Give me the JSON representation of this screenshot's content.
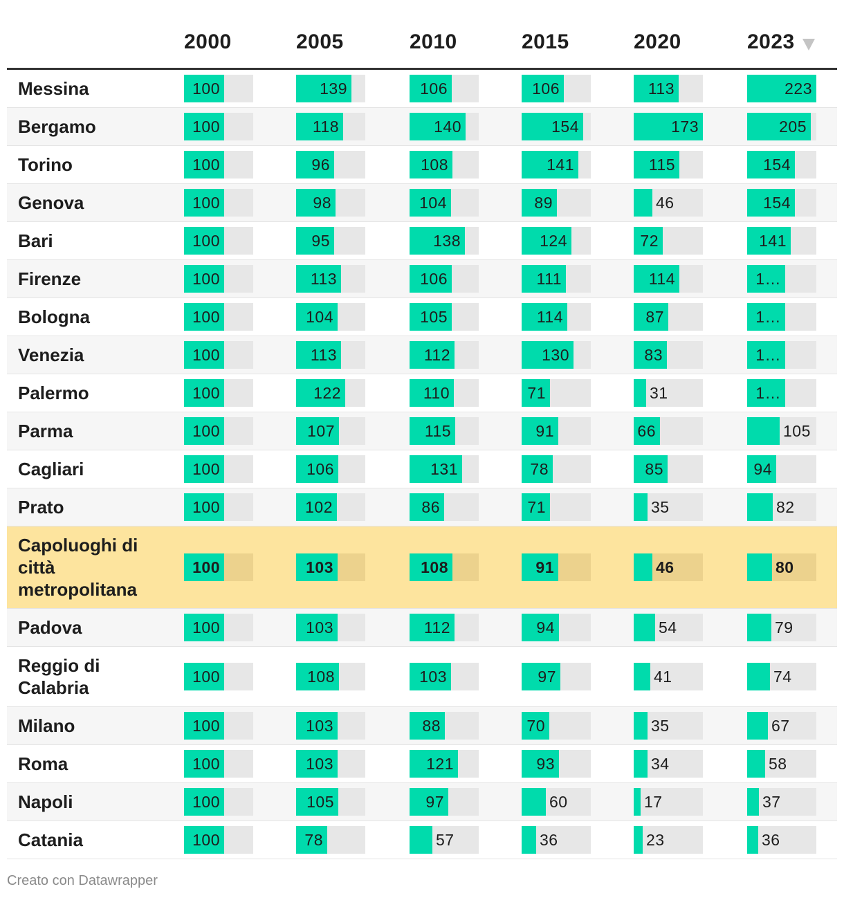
{
  "chart_data": {
    "type": "table",
    "columns": [
      "2000",
      "2005",
      "2010",
      "2015",
      "2020",
      "2023"
    ],
    "sort_column": "2023",
    "max_value": 223,
    "rows": [
      {
        "city": "Messina",
        "values": [
          100,
          139,
          106,
          106,
          113,
          223
        ],
        "labels": [
          "100",
          "139",
          "106",
          "106",
          "113",
          "223"
        ],
        "highlight": false
      },
      {
        "city": "Bergamo",
        "values": [
          100,
          118,
          140,
          154,
          173,
          205
        ],
        "labels": [
          "100",
          "118",
          "140",
          "154",
          "173",
          "205"
        ],
        "highlight": false
      },
      {
        "city": "Torino",
        "values": [
          100,
          96,
          108,
          141,
          115,
          154
        ],
        "labels": [
          "100",
          "96",
          "108",
          "141",
          "115",
          "154"
        ],
        "highlight": false
      },
      {
        "city": "Genova",
        "values": [
          100,
          98,
          104,
          89,
          46,
          154
        ],
        "labels": [
          "100",
          "98",
          "104",
          "89",
          "46",
          "154"
        ],
        "highlight": false
      },
      {
        "city": "Bari",
        "values": [
          100,
          95,
          138,
          124,
          72,
          141
        ],
        "labels": [
          "100",
          "95",
          "138",
          "124",
          "72",
          "141"
        ],
        "highlight": false
      },
      {
        "city": "Firenze",
        "values": [
          100,
          113,
          106,
          111,
          114,
          123
        ],
        "labels": [
          "100",
          "113",
          "106",
          "111",
          "114",
          "1…"
        ],
        "highlight": false
      },
      {
        "city": "Bologna",
        "values": [
          100,
          104,
          105,
          114,
          87,
          123
        ],
        "labels": [
          "100",
          "104",
          "105",
          "114",
          "87",
          "1…"
        ],
        "highlight": false
      },
      {
        "city": "Venezia",
        "values": [
          100,
          113,
          112,
          130,
          83,
          123
        ],
        "labels": [
          "100",
          "113",
          "112",
          "130",
          "83",
          "1…"
        ],
        "highlight": false
      },
      {
        "city": "Palermo",
        "values": [
          100,
          122,
          110,
          71,
          31,
          123
        ],
        "labels": [
          "100",
          "122",
          "110",
          "71",
          "31",
          "1…"
        ],
        "highlight": false
      },
      {
        "city": "Parma",
        "values": [
          100,
          107,
          115,
          91,
          66,
          105
        ],
        "labels": [
          "100",
          "107",
          "115",
          "91",
          "66",
          "105"
        ],
        "highlight": false
      },
      {
        "city": "Cagliari",
        "values": [
          100,
          106,
          131,
          78,
          85,
          94
        ],
        "labels": [
          "100",
          "106",
          "131",
          "78",
          "85",
          "94"
        ],
        "highlight": false
      },
      {
        "city": "Prato",
        "values": [
          100,
          102,
          86,
          71,
          35,
          82
        ],
        "labels": [
          "100",
          "102",
          "86",
          "71",
          "35",
          "82"
        ],
        "highlight": false
      },
      {
        "city": "Capoluoghi di città metropolitana",
        "values": [
          100,
          103,
          108,
          91,
          46,
          80
        ],
        "labels": [
          "100",
          "103",
          "108",
          "91",
          "46",
          "80"
        ],
        "highlight": true
      },
      {
        "city": "Padova",
        "values": [
          100,
          103,
          112,
          94,
          54,
          79
        ],
        "labels": [
          "100",
          "103",
          "112",
          "94",
          "54",
          "79"
        ],
        "highlight": false
      },
      {
        "city": "Reggio di Calabria",
        "values": [
          100,
          108,
          103,
          97,
          41,
          74
        ],
        "labels": [
          "100",
          "108",
          "103",
          "97",
          "41",
          "74"
        ],
        "highlight": false
      },
      {
        "city": "Milano",
        "values": [
          100,
          103,
          88,
          70,
          35,
          67
        ],
        "labels": [
          "100",
          "103",
          "88",
          "70",
          "35",
          "67"
        ],
        "highlight": false
      },
      {
        "city": "Roma",
        "values": [
          100,
          103,
          121,
          93,
          34,
          58
        ],
        "labels": [
          "100",
          "103",
          "121",
          "93",
          "34",
          "58"
        ],
        "highlight": false
      },
      {
        "city": "Napoli",
        "values": [
          100,
          105,
          97,
          60,
          17,
          37
        ],
        "labels": [
          "100",
          "105",
          "97",
          "60",
          "17",
          "37"
        ],
        "highlight": false
      },
      {
        "city": "Catania",
        "values": [
          100,
          78,
          57,
          36,
          23,
          36
        ],
        "labels": [
          "100",
          "78",
          "57",
          "36",
          "23",
          "36"
        ],
        "highlight": false
      }
    ]
  },
  "footer": {
    "credit": "Creato con Datawrapper"
  },
  "colors": {
    "bar": "#00dbac",
    "track": "#e7e7e7",
    "highlight_row": "#fde49e",
    "highlight_track": "#ecd28d"
  }
}
